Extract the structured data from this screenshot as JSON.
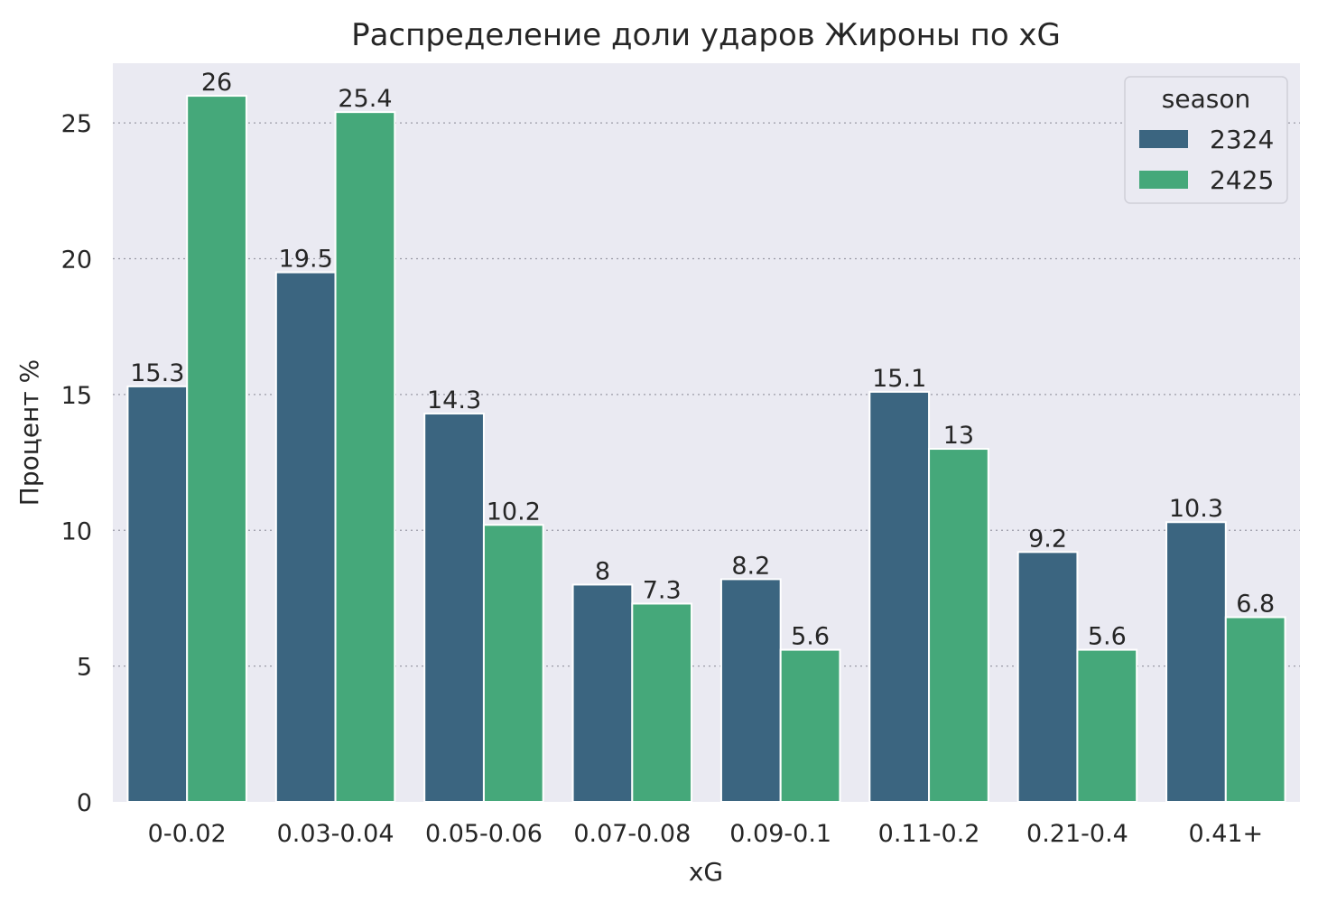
{
  "chart_data": {
    "type": "bar",
    "title": "Распределение доли ударов Жироны по xG",
    "xlabel": "xG",
    "ylabel": "Процент %",
    "categories": [
      "0-0.02",
      "0.03-0.04",
      "0.05-0.06",
      "0.07-0.08",
      "0.09-0.1",
      "0.11-0.2",
      "0.21-0.4",
      "0.41+"
    ],
    "series": [
      {
        "name": "2324",
        "color": "#3b6580",
        "values": [
          15.3,
          19.5,
          14.3,
          8,
          8.2,
          15.1,
          9.2,
          10.3
        ]
      },
      {
        "name": "2425",
        "color": "#45a87a",
        "values": [
          26,
          25.4,
          10.2,
          7.3,
          5.6,
          13,
          5.6,
          6.8
        ]
      }
    ],
    "ylim": [
      0,
      27.2
    ],
    "yticks": [
      0,
      5,
      10,
      15,
      20,
      25
    ],
    "grid": true,
    "legend": {
      "title": "season",
      "placement": "top-right"
    }
  }
}
